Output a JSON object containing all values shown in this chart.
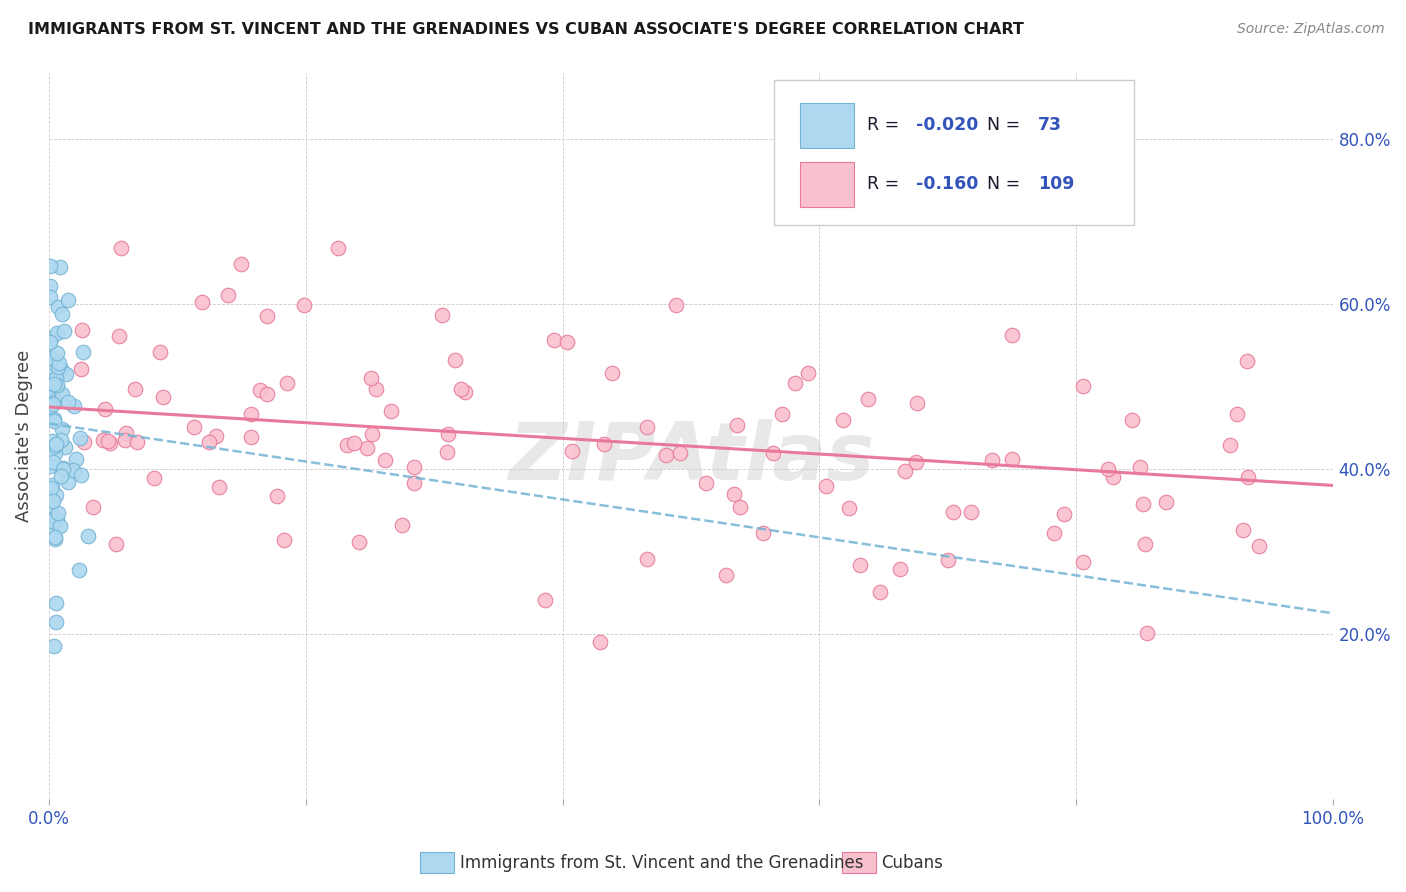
{
  "title": "IMMIGRANTS FROM ST. VINCENT AND THE GRENADINES VS CUBAN ASSOCIATE'S DEGREE CORRELATION CHART",
  "source": "Source: ZipAtlas.com",
  "ylabel": "Associate's Degree",
  "blue_R": -0.02,
  "blue_N": 73,
  "pink_R": -0.16,
  "pink_N": 109,
  "blue_color": "#add8f0",
  "pink_color": "#f9c0ce",
  "blue_edge_color": "#74b3d4",
  "pink_edge_color": "#e8799a",
  "blue_line_color": "#74b3d4",
  "pink_line_color": "#e8799a",
  "legend_text_color": "#1a1a2e",
  "legend_value_color": "#3355bb",
  "watermark": "ZIPAtlas",
  "legend_blue_label": "Immigrants from St. Vincent and the Grenadines",
  "legend_pink_label": "Cubans",
  "xlim": [
    0.0,
    1.0
  ],
  "ylim": [
    0.0,
    0.88
  ],
  "xtick_positions": [
    0.0,
    0.2,
    0.4,
    0.6,
    0.8,
    1.0
  ],
  "xticklabels": [
    "0.0%",
    "",
    "",
    "",
    "",
    "100.0%"
  ],
  "ytick_positions": [
    0.2,
    0.4,
    0.6,
    0.8
  ],
  "ytick_labels": [
    "20.0%",
    "40.0%",
    "60.0%",
    "80.0%"
  ],
  "blue_intercept": 0.455,
  "blue_slope": -0.23,
  "pink_intercept": 0.475,
  "pink_slope": -0.095,
  "background_color": "#ffffff",
  "grid_color": "#cccccc"
}
